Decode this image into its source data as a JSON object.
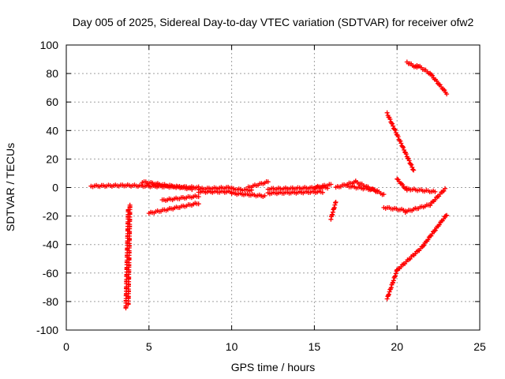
{
  "chart_data": {
    "type": "scatter",
    "title": "Day 005 of 2025, Sidereal Day-to-day VTEC variation (SDTVAR) for receiver ofw2",
    "xlabel": "GPS time / hours",
    "ylabel": "SDTVAR / TECUs",
    "xlim": [
      0,
      25
    ],
    "ylim": [
      -100,
      100
    ],
    "xticks": [
      0,
      5,
      10,
      15,
      20,
      25
    ],
    "yticks": [
      -100,
      -80,
      -60,
      -40,
      -20,
      0,
      20,
      40,
      60,
      80,
      100
    ],
    "grid": true,
    "marker": "+",
    "color": "#ff0000",
    "segments": [
      {
        "from": [
          1.5,
          1
        ],
        "to": [
          3.5,
          1.5
        ]
      },
      {
        "from": [
          3.5,
          1.5
        ],
        "to": [
          8.0,
          0
        ]
      },
      {
        "from": [
          4.6,
          4
        ],
        "to": [
          7.6,
          -1
        ]
      },
      {
        "from": [
          5.0,
          -18
        ],
        "to": [
          8.0,
          -11
        ]
      },
      {
        "from": [
          5.8,
          -9
        ],
        "to": [
          8.0,
          -6
        ]
      },
      {
        "from": [
          3.6,
          -85
        ],
        "to": [
          3.75,
          -15
        ]
      },
      {
        "from": [
          3.75,
          -82
        ],
        "to": [
          3.85,
          -12
        ]
      },
      {
        "from": [
          8.0,
          -3
        ],
        "to": [
          10.0,
          -3
        ]
      },
      {
        "from": [
          8.0,
          -1
        ],
        "to": [
          10.0,
          0
        ]
      },
      {
        "from": [
          10.0,
          -4
        ],
        "to": [
          12.0,
          -6
        ]
      },
      {
        "from": [
          10.0,
          -1
        ],
        "to": [
          11.2,
          -2
        ]
      },
      {
        "from": [
          11.0,
          0
        ],
        "to": [
          12.2,
          4
        ]
      },
      {
        "from": [
          12.2,
          -4
        ],
        "to": [
          15.5,
          -3
        ]
      },
      {
        "from": [
          12.2,
          -1
        ],
        "to": [
          15.8,
          0
        ]
      },
      {
        "from": [
          15.0,
          0
        ],
        "to": [
          16.0,
          2
        ]
      },
      {
        "from": [
          16.0,
          -22
        ],
        "to": [
          16.3,
          -10
        ]
      },
      {
        "from": [
          16.3,
          0
        ],
        "to": [
          17.5,
          4
        ]
      },
      {
        "from": [
          17.5,
          4
        ],
        "to": [
          19.2,
          -5
        ]
      },
      {
        "from": [
          17.0,
          1
        ],
        "to": [
          18.8,
          -2
        ]
      },
      {
        "from": [
          19.2,
          -14
        ],
        "to": [
          20.5,
          -16
        ]
      },
      {
        "from": [
          20.5,
          -17
        ],
        "to": [
          22.0,
          -12
        ]
      },
      {
        "from": [
          22.0,
          -12
        ],
        "to": [
          22.9,
          -1
        ]
      },
      {
        "from": [
          20.0,
          6
        ],
        "to": [
          20.6,
          -2
        ]
      },
      {
        "from": [
          20.6,
          -1
        ],
        "to": [
          22.3,
          -3
        ]
      },
      {
        "from": [
          19.4,
          52
        ],
        "to": [
          21.0,
          12
        ]
      },
      {
        "from": [
          20.6,
          88
        ],
        "to": [
          21.2,
          84
        ]
      },
      {
        "from": [
          21.2,
          86
        ],
        "to": [
          22.0,
          80
        ]
      },
      {
        "from": [
          22.0,
          80
        ],
        "to": [
          23.0,
          66
        ]
      },
      {
        "from": [
          19.4,
          -78
        ],
        "to": [
          20.0,
          -58
        ]
      },
      {
        "from": [
          20.0,
          -58
        ],
        "to": [
          21.5,
          -42
        ]
      },
      {
        "from": [
          21.5,
          -42
        ],
        "to": [
          23.0,
          -19
        ]
      }
    ]
  }
}
